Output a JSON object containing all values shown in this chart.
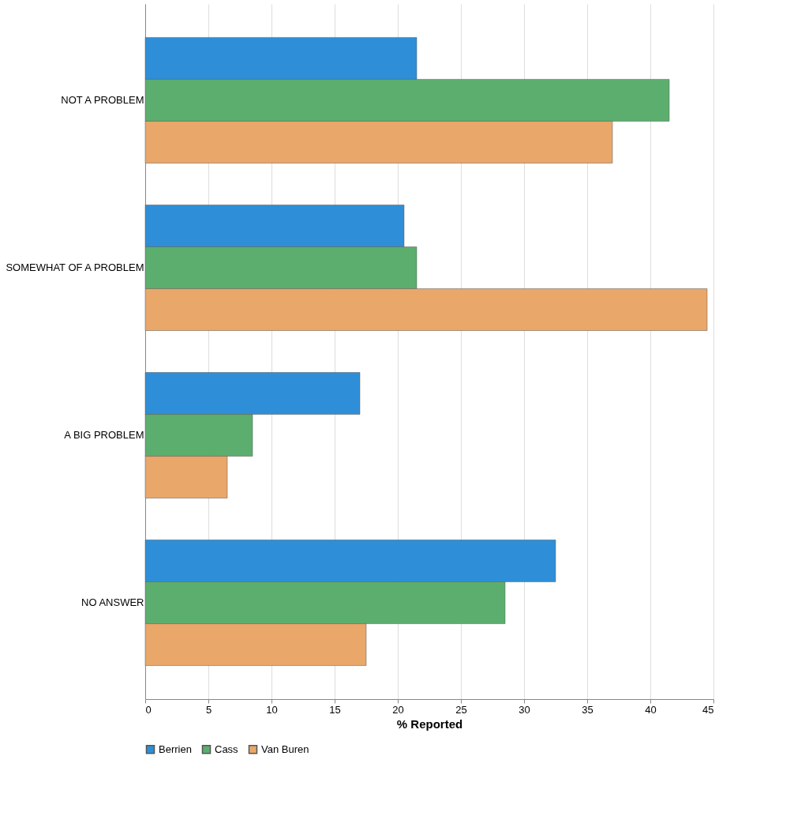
{
  "chart_data": {
    "type": "bar",
    "orientation": "horizontal",
    "xlabel": "% Reported",
    "categories": [
      "NOT A PROBLEM",
      "SOMEWHAT OF A PROBLEM",
      "A BIG PROBLEM",
      "NO ANSWER"
    ],
    "series": [
      {
        "name": "Berrien",
        "color": "#2e8fd8",
        "values": [
          21.5,
          20.5,
          17,
          32.5
        ]
      },
      {
        "name": "Cass",
        "color": "#5cae6e",
        "values": [
          41.5,
          21.5,
          8.5,
          28.5
        ]
      },
      {
        "name": "Van Buren",
        "color": "#e9a76a",
        "values": [
          37,
          44.5,
          6.5,
          17.5
        ]
      }
    ],
    "xlim": [
      0,
      45
    ],
    "xticks": [
      0,
      5,
      10,
      15,
      20,
      25,
      30,
      35,
      40,
      45
    ],
    "grid": "x",
    "legend": "bottom"
  }
}
